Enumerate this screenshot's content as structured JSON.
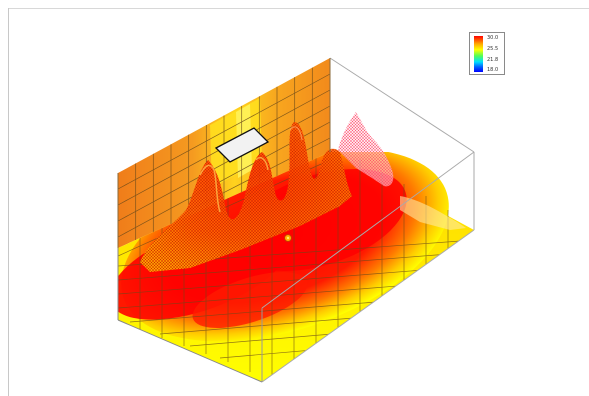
{
  "colors": {
    "hot": "#ff0000",
    "warm": "#ff8c00",
    "mid": "#ffff00",
    "cool": "#00e5ff",
    "cold": "#0000ff",
    "wall": "#f08a1e",
    "grid": "#6b4a1a",
    "box_edge": "#aaaaaa",
    "window_fill": "#f2f2f2"
  },
  "legend": {
    "values": [
      "30.0",
      "25.5",
      "21.8",
      "18.0"
    ]
  },
  "icons": {
    "window": "white-rectangle-window"
  }
}
